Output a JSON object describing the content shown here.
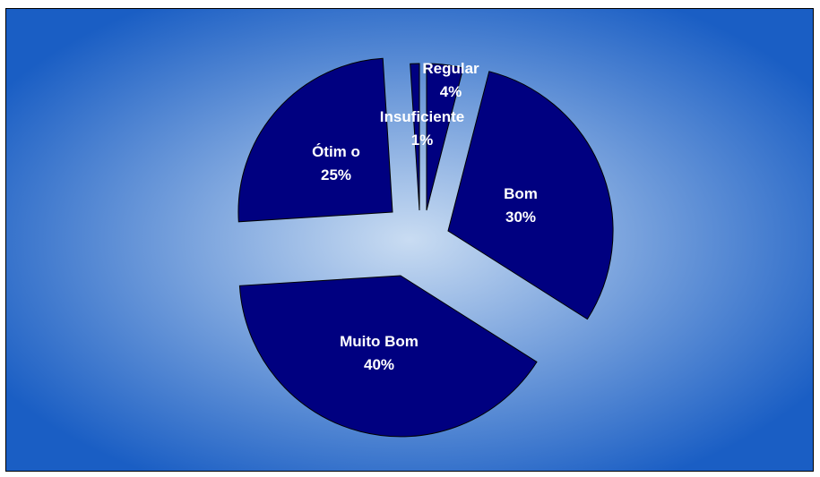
{
  "chart_data": {
    "type": "pie",
    "title": "",
    "slices": [
      {
        "name": "Regular",
        "value": 4,
        "label_name": "Regular",
        "label_value": "4%"
      },
      {
        "name": "Bom",
        "value": 30,
        "label_name": "Bom",
        "label_value": "30%"
      },
      {
        "name": "Muito Bom",
        "value": 40,
        "label_name": "Muito Bom",
        "label_value": "40%"
      },
      {
        "name": "Ótimo",
        "value": 25,
        "label_name": "Ótim o",
        "label_value": "25%"
      },
      {
        "name": "Insuficiente",
        "value": 1,
        "label_name": "Insuficiente",
        "label_value": "1%"
      }
    ],
    "exploded": true,
    "legend": "none"
  },
  "colors": {
    "slice_fill": "#000080",
    "slice_stroke": "#000000",
    "label_text": "#ffffff",
    "background_center": "#c9dcf2",
    "background_edge": "#1a5ec4"
  }
}
